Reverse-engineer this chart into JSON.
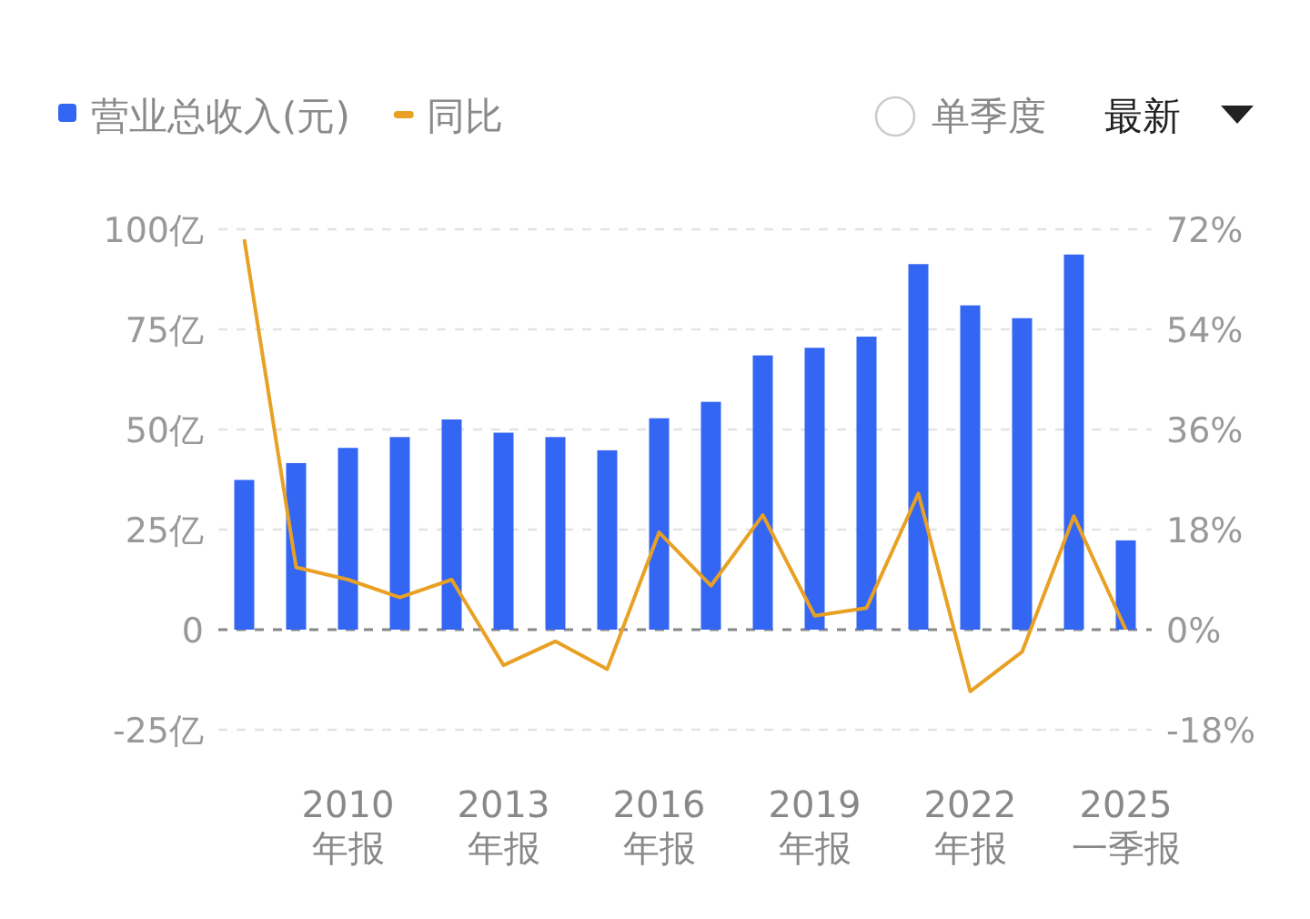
{
  "chart_data": {
    "type": "bar",
    "categories": [
      null,
      null,
      "2010\n年报",
      null,
      null,
      "2013\n年报",
      null,
      null,
      "2016\n年报",
      null,
      null,
      "2019\n年报",
      null,
      null,
      "2022\n年报",
      null,
      null,
      "2025\n一季报"
    ],
    "series": [
      {
        "name": "营业总收入(元)",
        "color": "#3366f2",
        "values": [
          37.4,
          41.6,
          45.4,
          48.1,
          52.5,
          49.2,
          48.1,
          44.8,
          52.8,
          56.9,
          68.5,
          70.4,
          73.2,
          91.3,
          81.0,
          77.8,
          93.7,
          22.3
        ]
      },
      {
        "name": "同比",
        "type": "line",
        "axis": "y2",
        "color": "#e8a125",
        "values": [
          70.2,
          11.2,
          9.0,
          5.8,
          9.0,
          -6.4,
          -2.1,
          -7.1,
          17.5,
          7.9,
          20.6,
          2.5,
          3.9,
          24.5,
          -11.1,
          -4.0,
          20.4,
          0
        ]
      }
    ],
    "ylim": [
      -25,
      100
    ],
    "yticks": [
      {
        "value": -25,
        "label": "-25亿"
      },
      0,
      {
        "value": 25,
        "label": "25亿"
      },
      {
        "value": 50,
        "label": "50亿"
      },
      {
        "value": 75,
        "label": "75亿"
      },
      {
        "value": 100,
        "label": "100亿"
      }
    ],
    "y2lim": [
      -18,
      72
    ],
    "y2ticks": [
      {
        "value": -18,
        "label": "-18%"
      },
      {
        "value": 0,
        "label": "0%"
      },
      {
        "value": 18,
        "label": "18%"
      },
      {
        "value": 36,
        "label": "36%"
      },
      {
        "value": 54,
        "label": "54%"
      },
      {
        "value": 72,
        "label": "72%"
      }
    ],
    "grid": "y",
    "ref_lines": [
      {
        "axis": "y",
        "value": 0,
        "color": "#888888",
        "line_style": "dashed"
      }
    ],
    "legend": "top left",
    "annotations": [
      "单季度",
      "最新"
    ]
  }
}
